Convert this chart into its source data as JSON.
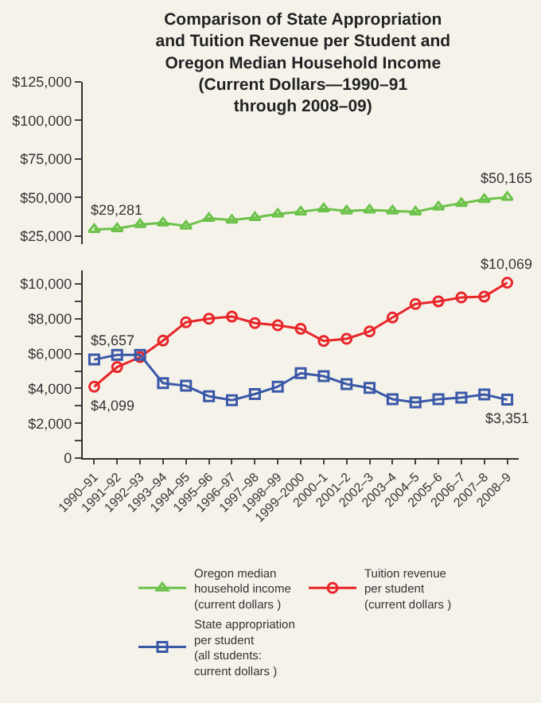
{
  "chart_data": [
    {
      "type": "line",
      "title": "Comparison of State Appropriation\nand Tuition Revenue per Student and\nOregon Median Household Income\n(Current Dollars—1990–91\nthrough 2008–09)",
      "categories": [
        "1990–91",
        "1991–92",
        "1992–93",
        "1993–94",
        "1994–95",
        "1995–96",
        "1996–97",
        "1997–98",
        "1998–99",
        "1999–2000",
        "2000–1",
        "2001–2",
        "2002–3",
        "2003–4",
        "2004–5",
        "2005–6",
        "2006–7",
        "2007–8",
        "2008–9"
      ],
      "series": [
        {
          "name": "Oregon median\nhousehold income\n(current dollars )",
          "color": "#6cc24a",
          "marker": "triangle",
          "values": [
            29281,
            29800,
            32500,
            33600,
            31500,
            36500,
            35300,
            37000,
            39300,
            40700,
            42700,
            41300,
            41900,
            41300,
            40700,
            43900,
            46200,
            48800,
            50165
          ]
        }
      ],
      "ylim": [
        20000,
        125000
      ],
      "yticks": [
        {
          "value": 25000,
          "label": "$25,000"
        },
        {
          "value": 50000,
          "label": "$50,000"
        },
        {
          "value": 75000,
          "label": "$75,000"
        },
        {
          "value": 100000,
          "label": "$100,000"
        },
        {
          "value": 125000,
          "label": "$125,000"
        }
      ],
      "tick_labels": "y",
      "annotations": [
        {
          "text": "$29,281",
          "x": "1990–91",
          "y": 29281
        },
        {
          "text": "$50,165",
          "x": "2008–9",
          "y": 50165
        }
      ]
    },
    {
      "type": "line",
      "categories": [
        "1990–91",
        "1991–92",
        "1992–93",
        "1993–94",
        "1994–95",
        "1995–96",
        "1996–97",
        "1997–98",
        "1998–99",
        "1999–2000",
        "2000–1",
        "2001–2",
        "2002–3",
        "2003–4",
        "2004–5",
        "2005–6",
        "2006–7",
        "2007–8",
        "2008–9"
      ],
      "series": [
        {
          "name": "Tuition revenue\nper student\n(current dollars )",
          "color": "#e8262a",
          "marker": "circle",
          "values": [
            4099,
            5225,
            5800,
            6750,
            7800,
            8000,
            8125,
            7750,
            7625,
            7425,
            6725,
            6850,
            7275,
            8075,
            8850,
            9000,
            9225,
            9275,
            10069
          ]
        },
        {
          "name": "State appropriation\nper student\n(all students:\ncurrent dollars )",
          "color": "#3a58a8",
          "marker": "square",
          "values": [
            5657,
            5925,
            5925,
            4300,
            4150,
            3550,
            3325,
            3675,
            4100,
            4875,
            4700,
            4250,
            4025,
            3375,
            3200,
            3375,
            3475,
            3650,
            3351
          ]
        }
      ],
      "ylim": [
        0,
        10800
      ],
      "yticks": [
        0,
        {
          "value": 1000,
          "label": null
        },
        {
          "value": 2000,
          "label": "$2,000"
        },
        {
          "value": 3000,
          "label": null
        },
        {
          "value": 4000,
          "label": "$4,000"
        },
        {
          "value": 5000,
          "label": null
        },
        {
          "value": 6000,
          "label": "$6,000"
        },
        {
          "value": 7000,
          "label": null
        },
        {
          "value": 8000,
          "label": "$8,000"
        },
        {
          "value": 9000,
          "label": null
        },
        {
          "value": 10000,
          "label": "$10,000"
        }
      ],
      "legend": "bottom",
      "annotations": [
        {
          "text": "$5,657",
          "x": "1990–91",
          "y": 5657
        },
        {
          "text": "$4,099",
          "x": "1990–91",
          "y": 4099
        },
        {
          "text": "$10,069",
          "x": "2008–9",
          "y": 10069
        },
        {
          "text": "$3,351",
          "x": "2008–9",
          "y": 3351
        }
      ]
    }
  ]
}
